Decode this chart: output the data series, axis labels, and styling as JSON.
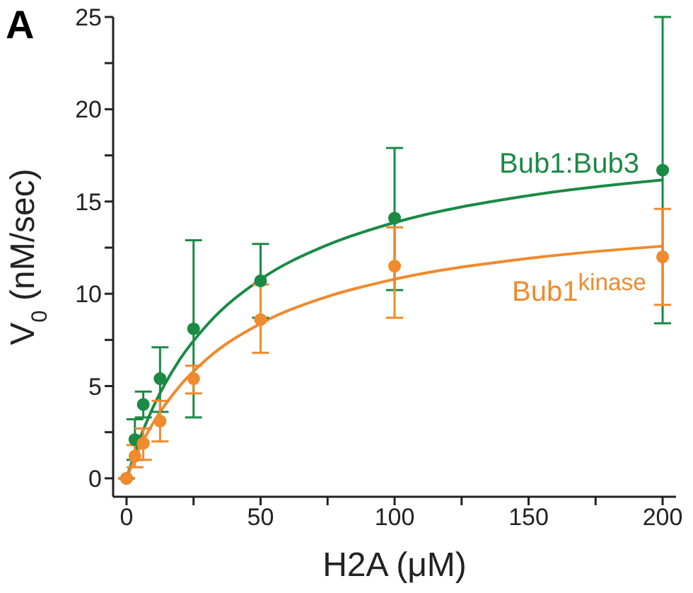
{
  "chart_data": {
    "type": "scatter",
    "xlabel": "H2A (μM)",
    "ylabel": "V$_{0}$ (nM/sec)",
    "annotations": [
      "A"
    ],
    "xlim": [
      -5,
      205
    ],
    "ylim": [
      -1,
      25
    ],
    "xticks": [
      0,
      {
        "value": 25,
        "label": null
      },
      50,
      {
        "value": 75,
        "label": null
      },
      100,
      {
        "value": 125,
        "label": null
      },
      150,
      {
        "value": 175,
        "label": null
      },
      200
    ],
    "yticks": [
      0,
      {
        "value": 2.5,
        "label": null
      },
      5,
      {
        "value": 7.5,
        "label": null
      },
      10,
      {
        "value": 12.5,
        "label": null
      },
      15,
      {
        "value": 17.5,
        "label": null
      },
      20,
      {
        "value": 22.5,
        "label": null
      },
      25
    ],
    "grid": false,
    "legend": false,
    "marker": "circle",
    "series": [
      {
        "type": "line",
        "color": "#1a8a45",
        "marker": "none",
        "line_style": "solid",
        "x": [
          0,
          5,
          10,
          20,
          30,
          50,
          75,
          100,
          150,
          200
        ],
        "values": [
          0,
          2.16,
          3.88,
          6.47,
          8.31,
          10.78,
          12.65,
          13.86,
          15.32,
          16.17
        ]
      },
      {
        "type": "line",
        "color": "#f08a2c",
        "marker": "none",
        "line_style": "solid",
        "x": [
          0,
          5,
          10,
          20,
          30,
          50,
          75,
          100,
          150,
          200
        ],
        "values": [
          0,
          1.68,
          3.02,
          5.03,
          6.47,
          8.39,
          9.85,
          10.79,
          11.92,
          12.58
        ]
      },
      {
        "name": "Bub1:Bub3",
        "color": "#1a8a45",
        "x": [
          0,
          3.125,
          6.25,
          12.5,
          25,
          50,
          100,
          200
        ],
        "values": [
          0,
          2.1,
          4.0,
          5.4,
          8.1,
          10.7,
          14.1,
          16.7
        ],
        "errors": [
          null,
          [
            1.0,
            3.2
          ],
          [
            3.3,
            4.7
          ],
          [
            3.6,
            7.1
          ],
          [
            3.3,
            12.9
          ],
          [
            8.7,
            12.7
          ],
          [
            10.2,
            17.9
          ],
          [
            8.4,
            25
          ]
        ]
      },
      {
        "name": "Bub1$^{kinase}$",
        "color": "#f08a2c",
        "x": [
          0,
          3.125,
          6.25,
          12.5,
          25,
          50,
          100,
          200
        ],
        "values": [
          0,
          1.2,
          1.9,
          3.1,
          5.4,
          8.6,
          11.5,
          12.0
        ],
        "errors": [
          null,
          [
            0.6,
            1.8
          ],
          [
            1.0,
            2.7
          ],
          [
            2.0,
            4.2
          ],
          [
            4.6,
            6.1
          ],
          [
            6.8,
            10.5
          ],
          [
            8.7,
            13.6
          ],
          [
            9.4,
            14.6
          ]
        ]
      }
    ]
  }
}
